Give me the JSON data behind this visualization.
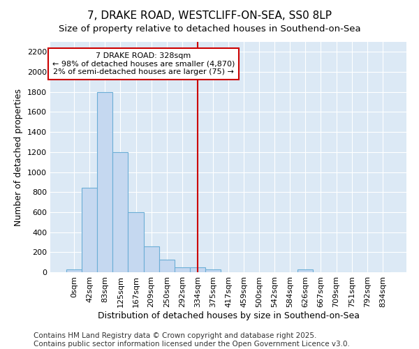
{
  "title": "7, DRAKE ROAD, WESTCLIFF-ON-SEA, SS0 8LP",
  "subtitle": "Size of property relative to detached houses in Southend-on-Sea",
  "xlabel": "Distribution of detached houses by size in Southend-on-Sea",
  "ylabel": "Number of detached properties",
  "bar_labels": [
    "0sqm",
    "42sqm",
    "83sqm",
    "125sqm",
    "167sqm",
    "209sqm",
    "250sqm",
    "292sqm",
    "334sqm",
    "375sqm",
    "417sqm",
    "459sqm",
    "500sqm",
    "542sqm",
    "584sqm",
    "626sqm",
    "667sqm",
    "709sqm",
    "751sqm",
    "792sqm",
    "834sqm"
  ],
  "bar_values": [
    25,
    840,
    1800,
    1200,
    600,
    255,
    125,
    50,
    50,
    25,
    0,
    0,
    0,
    0,
    0,
    25,
    0,
    0,
    0,
    0,
    0
  ],
  "bar_color": "#c5d8f0",
  "bar_edge_color": "#6baed6",
  "vline_x": 8,
  "vline_color": "#cc0000",
  "annotation_text": "7 DRAKE ROAD: 328sqm\n← 98% of detached houses are smaller (4,870)\n2% of semi-detached houses are larger (75) →",
  "annotation_box_color": "#ffffff",
  "annotation_box_edge": "#cc0000",
  "ylim": [
    0,
    2300
  ],
  "yticks": [
    0,
    200,
    400,
    600,
    800,
    1000,
    1200,
    1400,
    1600,
    1800,
    2000,
    2200
  ],
  "background_color": "#dce9f5",
  "fig_background": "#ffffff",
  "footer_text": "Contains HM Land Registry data © Crown copyright and database right 2025.\nContains public sector information licensed under the Open Government Licence v3.0.",
  "title_fontsize": 11,
  "tick_fontsize": 8,
  "footer_fontsize": 7.5
}
